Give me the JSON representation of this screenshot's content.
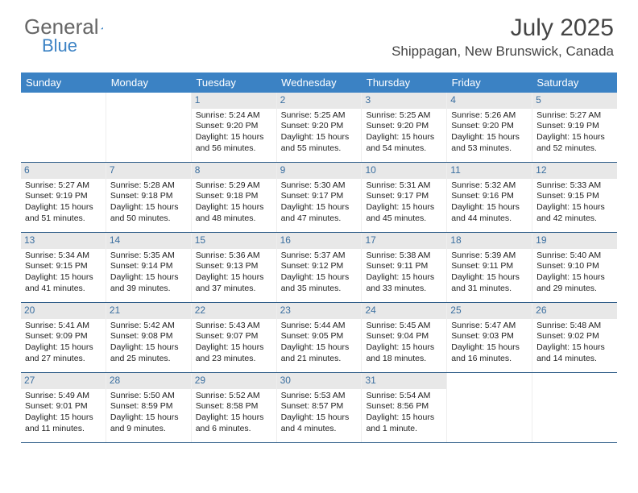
{
  "logo": {
    "part1": "General",
    "part2": "Blue"
  },
  "title": "July 2025",
  "location": "Shippagan, New Brunswick, Canada",
  "header_color": "#3b82c4",
  "divider_color": "#2f5d88",
  "daynum_bg": "#e8e8e8",
  "daynum_color": "#3b6fa0",
  "dow": [
    "Sunday",
    "Monday",
    "Tuesday",
    "Wednesday",
    "Thursday",
    "Friday",
    "Saturday"
  ],
  "weeks": [
    [
      null,
      null,
      {
        "n": "1",
        "sr": "Sunrise: 5:24 AM",
        "ss": "Sunset: 9:20 PM",
        "dl": "Daylight: 15 hours and 56 minutes."
      },
      {
        "n": "2",
        "sr": "Sunrise: 5:25 AM",
        "ss": "Sunset: 9:20 PM",
        "dl": "Daylight: 15 hours and 55 minutes."
      },
      {
        "n": "3",
        "sr": "Sunrise: 5:25 AM",
        "ss": "Sunset: 9:20 PM",
        "dl": "Daylight: 15 hours and 54 minutes."
      },
      {
        "n": "4",
        "sr": "Sunrise: 5:26 AM",
        "ss": "Sunset: 9:20 PM",
        "dl": "Daylight: 15 hours and 53 minutes."
      },
      {
        "n": "5",
        "sr": "Sunrise: 5:27 AM",
        "ss": "Sunset: 9:19 PM",
        "dl": "Daylight: 15 hours and 52 minutes."
      }
    ],
    [
      {
        "n": "6",
        "sr": "Sunrise: 5:27 AM",
        "ss": "Sunset: 9:19 PM",
        "dl": "Daylight: 15 hours and 51 minutes."
      },
      {
        "n": "7",
        "sr": "Sunrise: 5:28 AM",
        "ss": "Sunset: 9:18 PM",
        "dl": "Daylight: 15 hours and 50 minutes."
      },
      {
        "n": "8",
        "sr": "Sunrise: 5:29 AM",
        "ss": "Sunset: 9:18 PM",
        "dl": "Daylight: 15 hours and 48 minutes."
      },
      {
        "n": "9",
        "sr": "Sunrise: 5:30 AM",
        "ss": "Sunset: 9:17 PM",
        "dl": "Daylight: 15 hours and 47 minutes."
      },
      {
        "n": "10",
        "sr": "Sunrise: 5:31 AM",
        "ss": "Sunset: 9:17 PM",
        "dl": "Daylight: 15 hours and 45 minutes."
      },
      {
        "n": "11",
        "sr": "Sunrise: 5:32 AM",
        "ss": "Sunset: 9:16 PM",
        "dl": "Daylight: 15 hours and 44 minutes."
      },
      {
        "n": "12",
        "sr": "Sunrise: 5:33 AM",
        "ss": "Sunset: 9:15 PM",
        "dl": "Daylight: 15 hours and 42 minutes."
      }
    ],
    [
      {
        "n": "13",
        "sr": "Sunrise: 5:34 AM",
        "ss": "Sunset: 9:15 PM",
        "dl": "Daylight: 15 hours and 41 minutes."
      },
      {
        "n": "14",
        "sr": "Sunrise: 5:35 AM",
        "ss": "Sunset: 9:14 PM",
        "dl": "Daylight: 15 hours and 39 minutes."
      },
      {
        "n": "15",
        "sr": "Sunrise: 5:36 AM",
        "ss": "Sunset: 9:13 PM",
        "dl": "Daylight: 15 hours and 37 minutes."
      },
      {
        "n": "16",
        "sr": "Sunrise: 5:37 AM",
        "ss": "Sunset: 9:12 PM",
        "dl": "Daylight: 15 hours and 35 minutes."
      },
      {
        "n": "17",
        "sr": "Sunrise: 5:38 AM",
        "ss": "Sunset: 9:11 PM",
        "dl": "Daylight: 15 hours and 33 minutes."
      },
      {
        "n": "18",
        "sr": "Sunrise: 5:39 AM",
        "ss": "Sunset: 9:11 PM",
        "dl": "Daylight: 15 hours and 31 minutes."
      },
      {
        "n": "19",
        "sr": "Sunrise: 5:40 AM",
        "ss": "Sunset: 9:10 PM",
        "dl": "Daylight: 15 hours and 29 minutes."
      }
    ],
    [
      {
        "n": "20",
        "sr": "Sunrise: 5:41 AM",
        "ss": "Sunset: 9:09 PM",
        "dl": "Daylight: 15 hours and 27 minutes."
      },
      {
        "n": "21",
        "sr": "Sunrise: 5:42 AM",
        "ss": "Sunset: 9:08 PM",
        "dl": "Daylight: 15 hours and 25 minutes."
      },
      {
        "n": "22",
        "sr": "Sunrise: 5:43 AM",
        "ss": "Sunset: 9:07 PM",
        "dl": "Daylight: 15 hours and 23 minutes."
      },
      {
        "n": "23",
        "sr": "Sunrise: 5:44 AM",
        "ss": "Sunset: 9:05 PM",
        "dl": "Daylight: 15 hours and 21 minutes."
      },
      {
        "n": "24",
        "sr": "Sunrise: 5:45 AM",
        "ss": "Sunset: 9:04 PM",
        "dl": "Daylight: 15 hours and 18 minutes."
      },
      {
        "n": "25",
        "sr": "Sunrise: 5:47 AM",
        "ss": "Sunset: 9:03 PM",
        "dl": "Daylight: 15 hours and 16 minutes."
      },
      {
        "n": "26",
        "sr": "Sunrise: 5:48 AM",
        "ss": "Sunset: 9:02 PM",
        "dl": "Daylight: 15 hours and 14 minutes."
      }
    ],
    [
      {
        "n": "27",
        "sr": "Sunrise: 5:49 AM",
        "ss": "Sunset: 9:01 PM",
        "dl": "Daylight: 15 hours and 11 minutes."
      },
      {
        "n": "28",
        "sr": "Sunrise: 5:50 AM",
        "ss": "Sunset: 8:59 PM",
        "dl": "Daylight: 15 hours and 9 minutes."
      },
      {
        "n": "29",
        "sr": "Sunrise: 5:52 AM",
        "ss": "Sunset: 8:58 PM",
        "dl": "Daylight: 15 hours and 6 minutes."
      },
      {
        "n": "30",
        "sr": "Sunrise: 5:53 AM",
        "ss": "Sunset: 8:57 PM",
        "dl": "Daylight: 15 hours and 4 minutes."
      },
      {
        "n": "31",
        "sr": "Sunrise: 5:54 AM",
        "ss": "Sunset: 8:56 PM",
        "dl": "Daylight: 15 hours and 1 minute."
      },
      null,
      null
    ]
  ]
}
